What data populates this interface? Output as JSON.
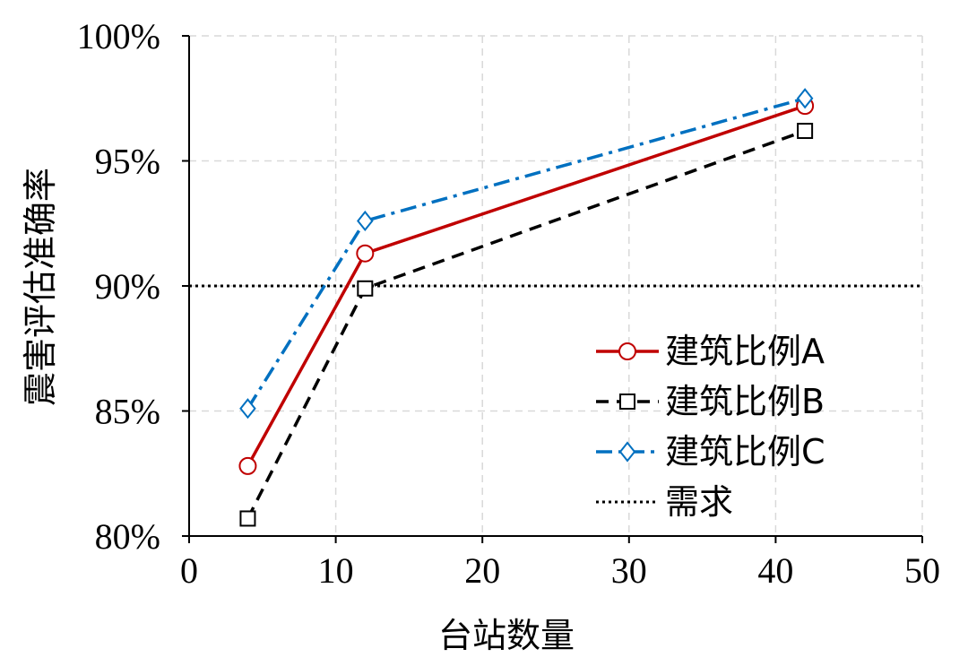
{
  "chart_data": {
    "type": "line",
    "xlabel": "台站数量",
    "ylabel": "震害评估准确率",
    "xlim": [
      0,
      50
    ],
    "ylim": [
      80,
      100
    ],
    "x_ticks": [
      "0",
      "10",
      "20",
      "30",
      "40",
      "50"
    ],
    "y_ticks": [
      "80%",
      "85%",
      "90%",
      "95%",
      "100%"
    ],
    "grid": true,
    "legend_position": "right",
    "series": [
      {
        "name": "建筑比例A",
        "x": [
          4,
          12,
          42
        ],
        "values": [
          82.8,
          91.3,
          97.2
        ],
        "color": "#C00000",
        "marker": "circle",
        "dash": "solid"
      },
      {
        "name": "建筑比例B",
        "x": [
          4,
          12,
          42
        ],
        "values": [
          80.7,
          89.9,
          96.2
        ],
        "color": "#000000",
        "marker": "square",
        "dash": "dashed"
      },
      {
        "name": "建筑比例C",
        "x": [
          4,
          12,
          42
        ],
        "values": [
          85.1,
          92.6,
          97.5
        ],
        "color": "#0070C0",
        "marker": "diamond",
        "dash": "dashdot"
      }
    ],
    "reference_line": {
      "name": "需求",
      "y": 90,
      "color": "#000000",
      "dash": "dotted"
    }
  }
}
